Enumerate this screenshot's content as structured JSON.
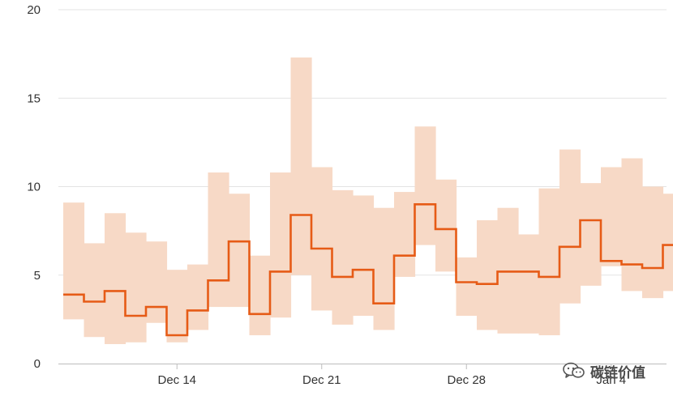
{
  "chart_data": {
    "type": "area",
    "title": "",
    "xlabel": "",
    "ylabel": "",
    "ylim": [
      0,
      20
    ],
    "grid": true,
    "y_ticks": [
      0,
      5,
      10,
      15,
      20
    ],
    "x_ticks": [
      {
        "label": "Dec 14",
        "date": "2019-12-14"
      },
      {
        "label": "Dec 21",
        "date": "2019-12-21"
      },
      {
        "label": "Dec 28",
        "date": "2019-12-28"
      },
      {
        "label": "Jan 4",
        "date": "2020-01-04"
      }
    ],
    "x": [
      "2019-12-09",
      "2019-12-10",
      "2019-12-11",
      "2019-12-12",
      "2019-12-13",
      "2019-12-14",
      "2019-12-15",
      "2019-12-16",
      "2019-12-17",
      "2019-12-18",
      "2019-12-19",
      "2019-12-20",
      "2019-12-21",
      "2019-12-22",
      "2019-12-23",
      "2019-12-24",
      "2019-12-25",
      "2019-12-26",
      "2019-12-27",
      "2019-12-28",
      "2019-12-29",
      "2019-12-30",
      "2019-12-31",
      "2020-01-01",
      "2020-01-02",
      "2020-01-03",
      "2020-01-04",
      "2020-01-05",
      "2020-01-06",
      "2020-01-07"
    ],
    "series": [
      {
        "role": "median",
        "values": [
          3.9,
          3.5,
          4.1,
          2.7,
          3.2,
          1.6,
          3.0,
          4.7,
          6.9,
          2.8,
          5.2,
          8.4,
          6.5,
          4.9,
          5.3,
          3.4,
          6.1,
          9.0,
          7.6,
          4.6,
          4.5,
          5.2,
          5.2,
          4.9,
          6.6,
          8.1,
          5.8,
          5.6,
          5.4,
          6.7
        ]
      },
      {
        "role": "upper",
        "values": [
          9.1,
          6.8,
          8.5,
          7.4,
          6.9,
          5.3,
          5.6,
          10.8,
          9.6,
          6.1,
          10.8,
          17.3,
          11.1,
          9.8,
          9.5,
          8.8,
          9.7,
          13.4,
          10.4,
          6.0,
          8.1,
          8.8,
          7.3,
          9.9,
          12.1,
          10.2,
          11.1,
          11.6,
          10.0,
          9.6
        ]
      },
      {
        "role": "lower",
        "values": [
          2.5,
          1.5,
          1.1,
          1.2,
          2.3,
          1.2,
          1.9,
          3.2,
          3.2,
          1.6,
          2.6,
          5.0,
          3.0,
          2.2,
          2.7,
          1.9,
          4.9,
          6.7,
          5.2,
          2.7,
          1.9,
          1.7,
          1.7,
          1.6,
          3.4,
          4.4,
          5.5,
          4.1,
          3.7,
          4.1
        ]
      }
    ],
    "colors": {
      "line": "#e65b16",
      "band": "#f7d9c6",
      "grid": "#e3e3e3",
      "axis": "#bdbdbd"
    }
  },
  "watermark": {
    "text": "碳链价值",
    "icon": "wechat-icon"
  }
}
